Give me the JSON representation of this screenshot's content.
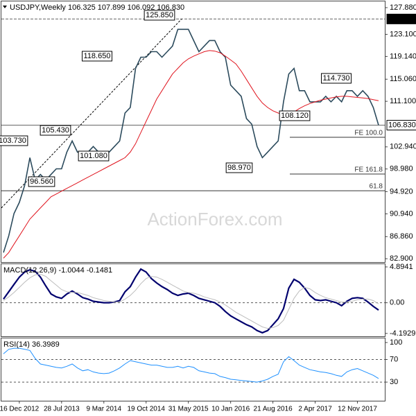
{
  "chart_data": [
    {
      "type": "line",
      "title": "USDJPY,Weekly  106.325 107.899 106.092 106.830",
      "watermark": "ActionForex.com",
      "categories": [
        null,
        null,
        null,
        "16 Dec 2012",
        null,
        null,
        null,
        null,
        null,
        null,
        null,
        "28 Jul 2013",
        null,
        null,
        null,
        null,
        null,
        null,
        null,
        "9 Mar 2014",
        null,
        null,
        null,
        null,
        null,
        null,
        null,
        "19 Oct 2014",
        null,
        null,
        null,
        null,
        null,
        null,
        null,
        "31 May 2015",
        null,
        null,
        null,
        null,
        null,
        null,
        null,
        "10 Jan 2016",
        null,
        null,
        null,
        null,
        null,
        null,
        null,
        "21 Aug 2016",
        null,
        null,
        null,
        null,
        null,
        null,
        null,
        "2 Apr 2017",
        null,
        null,
        null,
        null,
        null,
        null,
        null,
        "12 Nov 2017",
        null,
        null,
        null,
        null
      ],
      "series": [
        {
          "name": "USDJPY",
          "color": "#2b4a5c",
          "values": [
            84,
            87,
            91,
            93,
            96,
            101,
            97,
            98,
            97,
            98,
            99,
            99,
            102,
            104,
            102,
            102,
            102,
            103,
            102,
            102,
            102,
            103,
            104,
            109,
            110,
            117,
            119,
            119,
            120,
            120,
            119,
            120,
            121,
            124,
            124,
            124,
            122,
            120,
            121,
            122,
            122,
            120,
            119,
            114,
            113,
            112,
            108,
            107,
            103,
            101,
            102,
            103,
            104,
            111,
            116,
            117,
            113,
            113,
            111,
            111,
            111,
            112,
            111,
            112,
            111,
            113,
            113,
            112,
            113,
            112,
            110,
            106.83
          ]
        },
        {
          "name": "MA",
          "color": "#e0141e",
          "values": [
            83,
            84,
            85.5,
            87,
            88.5,
            90,
            91,
            92,
            93,
            94,
            94.5,
            95,
            95.5,
            96,
            96.5,
            97,
            97.5,
            98,
            98.5,
            99,
            99.5,
            100,
            100.5,
            101,
            102,
            103.5,
            105.5,
            107.5,
            109.5,
            111.5,
            113,
            114.5,
            116,
            117,
            118,
            118.7,
            119.2,
            119.6,
            120,
            120.2,
            120.1,
            119.8,
            119.2,
            118.5,
            117.8,
            116.5,
            115,
            113.5,
            112,
            110.8,
            110,
            109.4,
            109,
            108.7,
            108.8,
            109.2,
            109.8,
            110.3,
            110.7,
            111,
            111.3,
            111.5,
            111.7,
            111.9,
            112,
            112,
            111.9,
            111.8,
            111.7,
            111.6,
            111.4,
            111.2
          ]
        }
      ],
      "ylim": [
        82.3,
        129.0
      ],
      "yticks": [
        {
          "value": 127.88,
          "label": "127.880"
        },
        {
          "value": 123.1,
          "label": "123.100"
        },
        {
          "value": 119.14,
          "label": "119.140"
        },
        {
          "value": 115.06,
          "label": "115.060"
        },
        {
          "value": 111.1,
          "label": "111.100"
        },
        {
          "value": 102.94,
          "label": "102.940"
        },
        {
          "value": 98.98,
          "label": "98.980"
        },
        {
          "value": 94.92,
          "label": "94.920"
        },
        {
          "value": 90.94,
          "label": "90.940"
        },
        {
          "value": 86.86,
          "label": "86.860"
        },
        {
          "value": 82.9,
          "label": "82.900"
        }
      ],
      "annotations": [
        "125.850",
        "118.650",
        "114.730",
        "108.120",
        "105.430",
        "103.730",
        "101.080",
        "98.970",
        "96.560"
      ],
      "price_lines": [
        {
          "value": 125.85,
          "label": "125.850"
        },
        {
          "value": 106.83,
          "label": "106.830"
        }
      ],
      "levels": [
        {
          "value": 104.65,
          "label": "FE 100.0"
        },
        {
          "value": 98.07,
          "label": "FE 161.8"
        },
        {
          "value": 95.08,
          "label": "61.8"
        }
      ],
      "trendline": [
        92.0,
        125.85
      ]
    },
    {
      "type": "line",
      "title": "MACD(12,26,9) -1.0044 -0.1481",
      "series": [
        {
          "name": "MACD",
          "color": "#00006e",
          "values": [
            0.5,
            1.5,
            2.5,
            3.5,
            4.2,
            4.5,
            4.3,
            3.5,
            2.3,
            1.2,
            0.8,
            0.6,
            1.2,
            1.6,
            1.2,
            0.7,
            0.5,
            0.2,
            0.1,
            0.0,
            0.0,
            0.1,
            0.3,
            1.5,
            2.2,
            3.5,
            4.6,
            4.2,
            3.3,
            2.7,
            2.2,
            1.8,
            1.3,
            1.0,
            1.2,
            1.3,
            1.0,
            0.6,
            0.4,
            0.2,
            0.0,
            -0.5,
            -1.2,
            -1.8,
            -2.2,
            -2.6,
            -3.0,
            -3.3,
            -3.8,
            -4.1,
            -3.8,
            -3.0,
            -2.2,
            -0.8,
            2.0,
            3.2,
            2.8,
            2.0,
            1.0,
            0.4,
            0.3,
            0.4,
            0.2,
            0.0,
            -0.4,
            0.2,
            0.6,
            0.7,
            0.6,
            0.1,
            -0.5,
            -1.0044
          ]
        },
        {
          "name": "Signal",
          "color": "#bdbdbd",
          "values": [
            0.3,
            0.8,
            1.4,
            2.1,
            2.8,
            3.4,
            3.8,
            3.9,
            3.6,
            3.0,
            2.4,
            1.8,
            1.5,
            1.4,
            1.4,
            1.2,
            1.0,
            0.7,
            0.5,
            0.3,
            0.2,
            0.1,
            0.1,
            0.5,
            1.0,
            1.7,
            2.6,
            3.3,
            3.6,
            3.5,
            3.2,
            2.8,
            2.4,
            2.0,
            1.6,
            1.4,
            1.3,
            1.1,
            0.8,
            0.6,
            0.4,
            0.1,
            -0.3,
            -0.8,
            -1.3,
            -1.7,
            -2.1,
            -2.5,
            -2.9,
            -3.3,
            -3.5,
            -3.4,
            -3.1,
            -2.4,
            -0.9,
            0.6,
            1.6,
            2.1,
            1.9,
            1.4,
            1.0,
            0.7,
            0.5,
            0.3,
            0.1,
            0.1,
            0.2,
            0.4,
            0.5,
            0.5,
            0.3,
            -0.1481
          ]
        }
      ],
      "ylim": [
        -4.58,
        5.27
      ],
      "yticks": [
        4.8941,
        {
          "value": 0,
          "label": "0.00"
        },
        -4.1929
      ],
      "grid_levels": [
        0
      ]
    },
    {
      "type": "line",
      "title": "RSI(14) 36.3989",
      "series": [
        {
          "name": "RSI",
          "color": "#1e90ff",
          "values": [
            80,
            88,
            90,
            90,
            88,
            86,
            72,
            62,
            60,
            58,
            56,
            55,
            58,
            62,
            55,
            50,
            52,
            48,
            46,
            45,
            46,
            50,
            55,
            62,
            68,
            66,
            64,
            62,
            60,
            60,
            58,
            56,
            56,
            58,
            55,
            58,
            56,
            50,
            48,
            46,
            45,
            40,
            38,
            35,
            34,
            33,
            32,
            31,
            30,
            32,
            35,
            40,
            44,
            66,
            75,
            68,
            60,
            56,
            52,
            50,
            48,
            47,
            45,
            42,
            40,
            48,
            52,
            54,
            50,
            46,
            42,
            36.3989
          ]
        }
      ],
      "ylim": [
        -3,
        107.4
      ],
      "yticks": [
        100,
        70,
        30
      ],
      "grid_levels": [
        70,
        30
      ]
    }
  ]
}
